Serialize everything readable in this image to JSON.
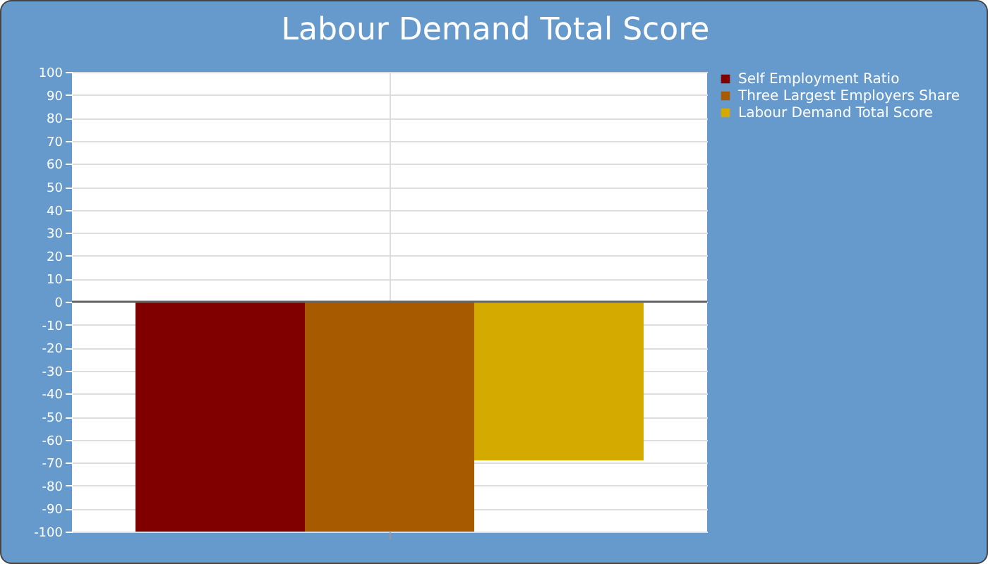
{
  "chart_data": {
    "type": "bar",
    "title": "Labour Demand Total Score",
    "categories": [
      null
    ],
    "series": [
      {
        "name": "Self Employment Ratio",
        "color": "#800000",
        "values": [
          -100
        ]
      },
      {
        "name": "Three Largest Employers Share",
        "color": "#a85a00",
        "values": [
          -100
        ]
      },
      {
        "name": "Labour Demand Total Score",
        "color": "#d4aa00",
        "values": [
          -69
        ]
      }
    ],
    "ylim": [
      -100,
      100
    ],
    "yticks": [
      -100,
      -90,
      -80,
      -70,
      -60,
      -50,
      -40,
      -30,
      -20,
      -10,
      0,
      10,
      20,
      30,
      40,
      50,
      60,
      70,
      80,
      90,
      100
    ],
    "ref_lines": [
      {
        "axis": "y",
        "value": 0,
        "color": "#666666"
      }
    ],
    "grid": true,
    "legend": "top right"
  }
}
